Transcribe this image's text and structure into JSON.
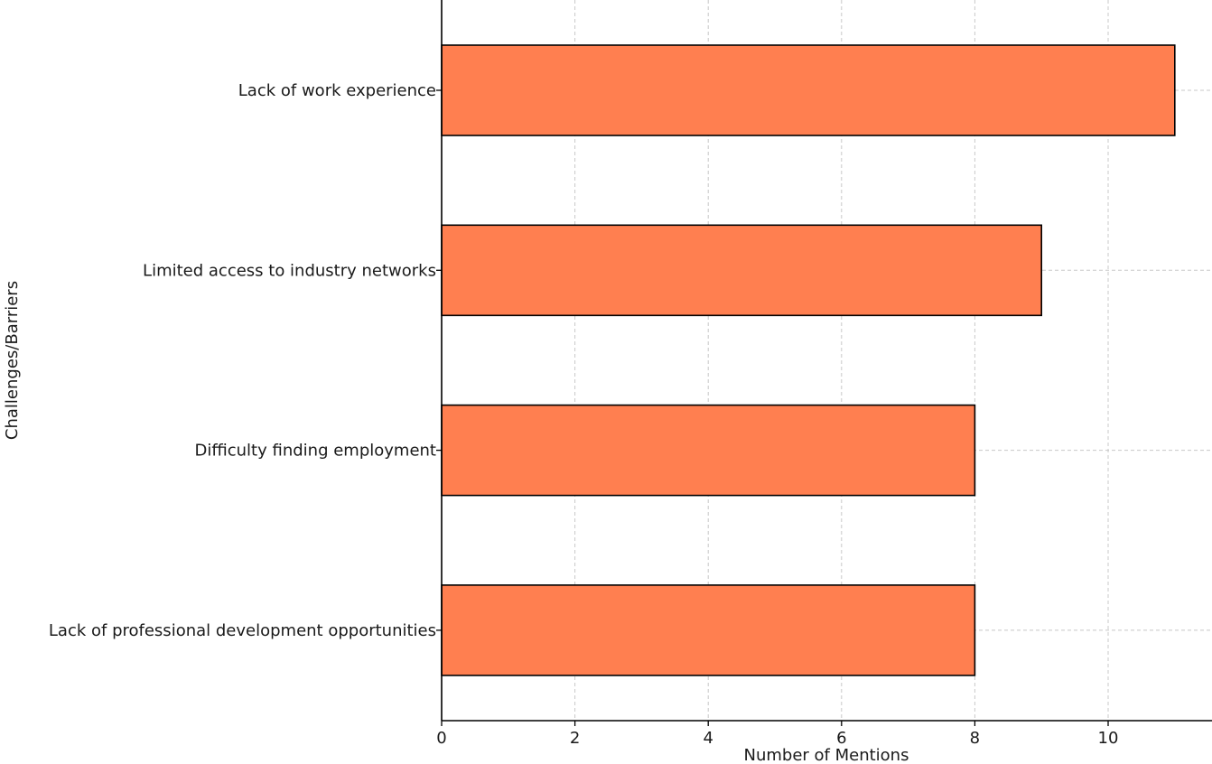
{
  "chart_data": {
    "type": "bar",
    "orientation": "horizontal",
    "categories": [
      "Lack of work experience",
      "Limited access to industry networks",
      "Difficulty finding employment",
      "Lack of professional development opportunities"
    ],
    "values": [
      11,
      9,
      8,
      8
    ],
    "xlabel": "Number of Mentions",
    "ylabel": "Challenges/Barriers",
    "xlim": [
      0,
      11.6
    ],
    "xticks": [
      "0",
      "2",
      "4",
      "6",
      "8",
      "10"
    ],
    "grid": true,
    "bar_color": "#FF7F50"
  }
}
